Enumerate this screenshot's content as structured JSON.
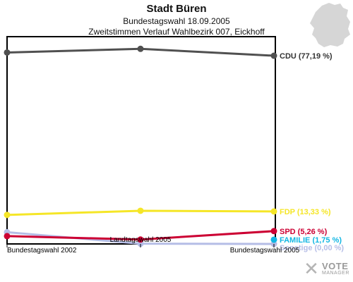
{
  "chart_data": {
    "type": "line",
    "title": "Stadt Büren",
    "subtitle1": "Bundestagswahl 18.09.2005",
    "subtitle2": "Zweitstimmen Verlauf Wahlbezirk 007, Eickhoff",
    "x": [
      "Bundestagswahl 2002",
      "Landtagswahl 2005",
      "Bundestagswahl 2005"
    ],
    "ylim": [
      0,
      85
    ],
    "grid": false,
    "legend": "right-end-labels",
    "series": [
      {
        "name": "CDU",
        "label": "CDU (77,19 %)",
        "color": "#505050",
        "label_color": "#333333",
        "values": [
          78.5,
          80.0,
          77.19
        ]
      },
      {
        "name": "FDP",
        "label": "FDP (13,33 %)",
        "color": "#f5e627",
        "label_color": "#f5e627",
        "values": [
          11.9,
          13.6,
          13.33
        ]
      },
      {
        "name": "SPD",
        "label": "SPD (5,26 %)",
        "color": "#cc0033",
        "label_color": "#cc0033",
        "values": [
          3.2,
          1.8,
          5.26
        ]
      },
      {
        "name": "FAMILIE",
        "label": "FAMILIE (1,75 %)",
        "color": "#11b6e3",
        "label_color": "#11b6e3",
        "values": [
          null,
          null,
          1.75
        ]
      },
      {
        "name": "Sonstige",
        "label": "Sonstige (0,00 %)",
        "color": "#b5bde6",
        "label_color": "#b5bde6",
        "values": [
          4.8,
          0.1,
          0.0
        ]
      }
    ]
  },
  "logo": {
    "mark": "✕",
    "line1": "VOTE",
    "line2": "MANAGER"
  },
  "map": {
    "icon": "germany-map-icon",
    "color": "#d6d6d6"
  }
}
